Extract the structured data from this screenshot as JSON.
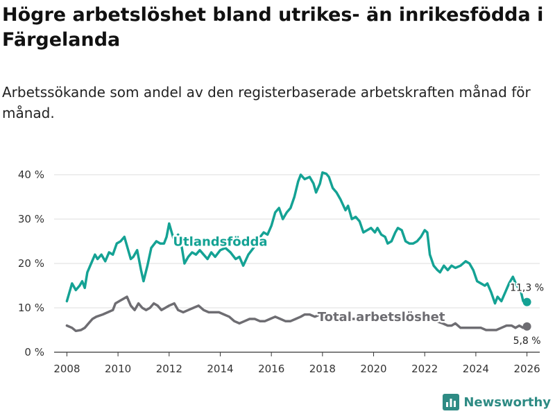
{
  "title": "Högre arbetslöshet bland utrikes- än inrikesfödda i Färgelanda",
  "subtitle": "Arbetssökande som andel av den registerbaserade arbetskraften månad för månad.",
  "brand": {
    "name": "Newsworthy",
    "icon": "bar-chart-logo-icon"
  },
  "colors": {
    "foreign": "#14a294",
    "total": "#6e6d72",
    "grid": "#dddddd",
    "axis": "#333333",
    "brand": "#2e8b84"
  },
  "chart_data": {
    "type": "line",
    "title": "Högre arbetslöshet bland utrikes- än inrikesfödda i Färgelanda",
    "xlabel": "",
    "ylabel": "",
    "xlim": [
      2007.5,
      2026.5
    ],
    "ylim": [
      0,
      40
    ],
    "y_ticks": [
      0,
      10,
      20,
      30,
      40
    ],
    "y_tick_labels": [
      "0 %",
      "10 %",
      "20 %",
      "30 %",
      "40 %"
    ],
    "x_ticks": [
      2008,
      2010,
      2012,
      2014,
      2016,
      2018,
      2020,
      2022,
      2024,
      2026
    ],
    "x_tick_labels": [
      "2008",
      "2010",
      "2012",
      "2014",
      "2016",
      "2018",
      "2020",
      "2022",
      "2024",
      "2026"
    ],
    "grid": true,
    "series": [
      {
        "name": "Utlandsfödda",
        "color": "#14a294",
        "end_label": "11,3 %",
        "points": [
          [
            2008.0,
            11.5
          ],
          [
            2008.2,
            15.5
          ],
          [
            2008.35,
            14.0
          ],
          [
            2008.5,
            15.0
          ],
          [
            2008.6,
            16.0
          ],
          [
            2008.7,
            14.5
          ],
          [
            2008.8,
            18.0
          ],
          [
            2008.95,
            20.0
          ],
          [
            2009.1,
            22.0
          ],
          [
            2009.2,
            21.0
          ],
          [
            2009.35,
            22.0
          ],
          [
            2009.5,
            20.5
          ],
          [
            2009.65,
            22.5
          ],
          [
            2009.8,
            22.0
          ],
          [
            2009.95,
            24.5
          ],
          [
            2010.1,
            25.0
          ],
          [
            2010.25,
            26.0
          ],
          [
            2010.4,
            23.0
          ],
          [
            2010.5,
            21.0
          ],
          [
            2010.6,
            21.5
          ],
          [
            2010.75,
            23.0
          ],
          [
            2010.9,
            18.5
          ],
          [
            2011.0,
            16.0
          ],
          [
            2011.15,
            19.5
          ],
          [
            2011.3,
            23.5
          ],
          [
            2011.5,
            25.0
          ],
          [
            2011.65,
            24.5
          ],
          [
            2011.8,
            24.5
          ],
          [
            2011.9,
            26.0
          ],
          [
            2012.0,
            29.0
          ],
          [
            2012.1,
            27.0
          ],
          [
            2012.2,
            25.0
          ],
          [
            2012.35,
            26.5
          ],
          [
            2012.5,
            23.5
          ],
          [
            2012.6,
            20.0
          ],
          [
            2012.75,
            21.5
          ],
          [
            2012.9,
            22.5
          ],
          [
            2013.05,
            22.0
          ],
          [
            2013.2,
            23.0
          ],
          [
            2013.35,
            22.0
          ],
          [
            2013.5,
            21.0
          ],
          [
            2013.65,
            22.5
          ],
          [
            2013.8,
            21.5
          ],
          [
            2014.0,
            23.0
          ],
          [
            2014.2,
            23.5
          ],
          [
            2014.4,
            22.5
          ],
          [
            2014.6,
            21.0
          ],
          [
            2014.75,
            21.5
          ],
          [
            2014.9,
            19.5
          ],
          [
            2015.1,
            22.0
          ],
          [
            2015.3,
            23.5
          ],
          [
            2015.5,
            25.5
          ],
          [
            2015.7,
            27.0
          ],
          [
            2015.85,
            26.5
          ],
          [
            2016.0,
            28.5
          ],
          [
            2016.15,
            31.5
          ],
          [
            2016.3,
            32.5
          ],
          [
            2016.45,
            30.0
          ],
          [
            2016.6,
            31.5
          ],
          [
            2016.75,
            32.5
          ],
          [
            2016.9,
            35.0
          ],
          [
            2017.05,
            38.5
          ],
          [
            2017.15,
            40.0
          ],
          [
            2017.3,
            39.0
          ],
          [
            2017.5,
            39.5
          ],
          [
            2017.65,
            38.0
          ],
          [
            2017.75,
            36.0
          ],
          [
            2017.9,
            38.0
          ],
          [
            2018.0,
            40.5
          ],
          [
            2018.15,
            40.2
          ],
          [
            2018.25,
            39.5
          ],
          [
            2018.4,
            37.0
          ],
          [
            2018.55,
            36.0
          ],
          [
            2018.7,
            34.5
          ],
          [
            2018.9,
            32.0
          ],
          [
            2019.0,
            33.0
          ],
          [
            2019.15,
            30.0
          ],
          [
            2019.3,
            30.5
          ],
          [
            2019.45,
            29.5
          ],
          [
            2019.6,
            27.0
          ],
          [
            2019.75,
            27.5
          ],
          [
            2019.9,
            28.0
          ],
          [
            2020.05,
            27.0
          ],
          [
            2020.15,
            28.0
          ],
          [
            2020.3,
            26.5
          ],
          [
            2020.45,
            26.0
          ],
          [
            2020.55,
            24.5
          ],
          [
            2020.7,
            25.0
          ],
          [
            2020.85,
            27.0
          ],
          [
            2020.95,
            28.0
          ],
          [
            2021.1,
            27.5
          ],
          [
            2021.25,
            25.0
          ],
          [
            2021.4,
            24.5
          ],
          [
            2021.55,
            24.5
          ],
          [
            2021.7,
            25.0
          ],
          [
            2021.85,
            26.0
          ],
          [
            2022.0,
            27.5
          ],
          [
            2022.1,
            27.0
          ],
          [
            2022.2,
            22.0
          ],
          [
            2022.35,
            19.5
          ],
          [
            2022.5,
            18.5
          ],
          [
            2022.6,
            18.0
          ],
          [
            2022.75,
            19.5
          ],
          [
            2022.9,
            18.5
          ],
          [
            2023.05,
            19.5
          ],
          [
            2023.2,
            19.0
          ],
          [
            2023.4,
            19.5
          ],
          [
            2023.6,
            20.5
          ],
          [
            2023.75,
            20.0
          ],
          [
            2023.9,
            18.5
          ],
          [
            2024.05,
            16.0
          ],
          [
            2024.2,
            15.5
          ],
          [
            2024.35,
            15.0
          ],
          [
            2024.45,
            15.5
          ],
          [
            2024.6,
            13.5
          ],
          [
            2024.75,
            11.0
          ],
          [
            2024.85,
            12.5
          ],
          [
            2025.0,
            11.5
          ],
          [
            2025.15,
            13.5
          ],
          [
            2025.3,
            15.5
          ],
          [
            2025.45,
            17.0
          ],
          [
            2025.6,
            15.0
          ],
          [
            2025.75,
            14.0
          ],
          [
            2025.85,
            11.5
          ],
          [
            2026.0,
            11.3
          ]
        ]
      },
      {
        "name": "Total arbetslöshet",
        "color": "#6e6d72",
        "end_label": "5,8 %",
        "points": [
          [
            2008.0,
            6.0
          ],
          [
            2008.2,
            5.5
          ],
          [
            2008.35,
            4.8
          ],
          [
            2008.55,
            5.0
          ],
          [
            2008.7,
            5.5
          ],
          [
            2008.85,
            6.5
          ],
          [
            2009.0,
            7.5
          ],
          [
            2009.15,
            8.0
          ],
          [
            2009.4,
            8.5
          ],
          [
            2009.6,
            9.0
          ],
          [
            2009.8,
            9.5
          ],
          [
            2009.9,
            11.0
          ],
          [
            2010.05,
            11.5
          ],
          [
            2010.2,
            12.0
          ],
          [
            2010.35,
            12.5
          ],
          [
            2010.5,
            10.5
          ],
          [
            2010.65,
            9.5
          ],
          [
            2010.8,
            11.0
          ],
          [
            2010.95,
            10.0
          ],
          [
            2011.1,
            9.5
          ],
          [
            2011.25,
            10.0
          ],
          [
            2011.4,
            11.0
          ],
          [
            2011.55,
            10.5
          ],
          [
            2011.7,
            9.5
          ],
          [
            2011.85,
            10.0
          ],
          [
            2012.0,
            10.5
          ],
          [
            2012.2,
            11.0
          ],
          [
            2012.35,
            9.5
          ],
          [
            2012.55,
            9.0
          ],
          [
            2012.75,
            9.5
          ],
          [
            2012.95,
            10.0
          ],
          [
            2013.15,
            10.5
          ],
          [
            2013.35,
            9.5
          ],
          [
            2013.55,
            9.0
          ],
          [
            2013.75,
            9.0
          ],
          [
            2013.95,
            9.0
          ],
          [
            2014.15,
            8.5
          ],
          [
            2014.35,
            8.0
          ],
          [
            2014.55,
            7.0
          ],
          [
            2014.75,
            6.5
          ],
          [
            2014.95,
            7.0
          ],
          [
            2015.15,
            7.5
          ],
          [
            2015.35,
            7.5
          ],
          [
            2015.55,
            7.0
          ],
          [
            2015.75,
            7.0
          ],
          [
            2015.95,
            7.5
          ],
          [
            2016.15,
            8.0
          ],
          [
            2016.35,
            7.5
          ],
          [
            2016.55,
            7.0
          ],
          [
            2016.75,
            7.0
          ],
          [
            2016.95,
            7.5
          ],
          [
            2017.15,
            8.0
          ],
          [
            2017.3,
            8.5
          ],
          [
            2017.5,
            8.5
          ],
          [
            2017.7,
            8.0
          ],
          [
            2017.9,
            8.5
          ],
          [
            2018.1,
            8.0
          ],
          [
            2018.4,
            8.0
          ],
          [
            2018.7,
            7.5
          ],
          [
            2019.0,
            7.5
          ],
          [
            2019.3,
            7.5
          ],
          [
            2019.6,
            8.0
          ],
          [
            2019.9,
            8.0
          ],
          [
            2020.2,
            8.0
          ],
          [
            2020.5,
            8.0
          ],
          [
            2020.8,
            7.5
          ],
          [
            2021.1,
            7.5
          ],
          [
            2021.4,
            7.5
          ],
          [
            2021.7,
            7.5
          ],
          [
            2022.0,
            8.0
          ],
          [
            2022.2,
            7.5
          ],
          [
            2022.45,
            7.0
          ],
          [
            2022.7,
            6.5
          ],
          [
            2022.9,
            6.0
          ],
          [
            2023.05,
            6.0
          ],
          [
            2023.2,
            6.5
          ],
          [
            2023.4,
            5.5
          ],
          [
            2023.6,
            5.5
          ],
          [
            2023.8,
            5.5
          ],
          [
            2024.0,
            5.5
          ],
          [
            2024.2,
            5.5
          ],
          [
            2024.4,
            5.0
          ],
          [
            2024.6,
            5.0
          ],
          [
            2024.8,
            5.0
          ],
          [
            2025.0,
            5.5
          ],
          [
            2025.2,
            6.0
          ],
          [
            2025.4,
            6.0
          ],
          [
            2025.55,
            5.5
          ],
          [
            2025.7,
            6.0
          ],
          [
            2025.85,
            5.5
          ],
          [
            2026.0,
            5.8
          ]
        ]
      }
    ],
    "annotations": [
      {
        "text": "Utlandsfödda",
        "series": "Utlandsfödda",
        "x": 2014.0,
        "y": 24.0
      },
      {
        "text": "Total arbetslöshet",
        "series": "Total arbetslöshet",
        "x": 2020.3,
        "y": 7.0
      }
    ]
  }
}
